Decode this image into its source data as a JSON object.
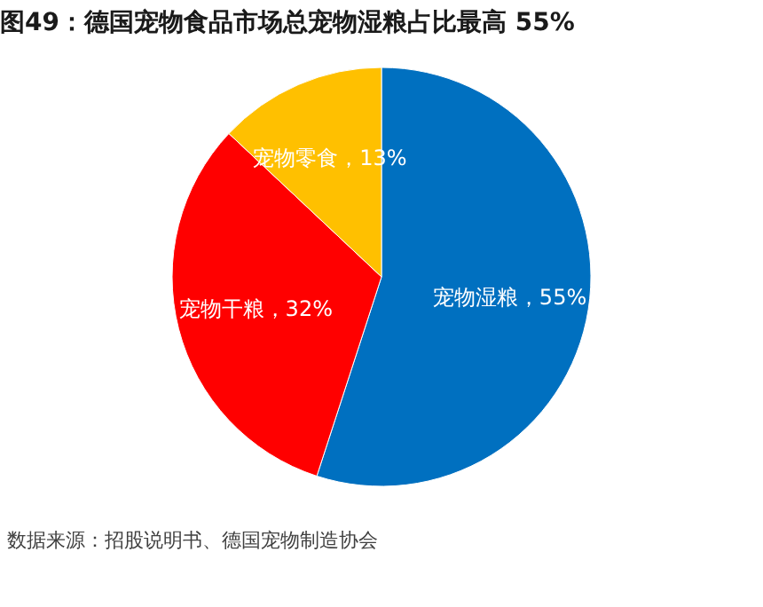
{
  "chart_data": {
    "type": "pie",
    "title": "图49：德国宠物食品市场总宠物湿粮占比最高 55%",
    "categories": [
      "宠物湿粮",
      "宠物干粮",
      "宠物零食"
    ],
    "values": [
      55,
      32,
      13
    ],
    "colors": [
      "#0070c0",
      "#ff0000",
      "#ffc000"
    ],
    "value_labels": [
      "55%",
      "32%",
      "13%"
    ],
    "legend": false,
    "annotations": [
      "数据来源：招股说明书、德国宠物制造协会"
    ]
  }
}
